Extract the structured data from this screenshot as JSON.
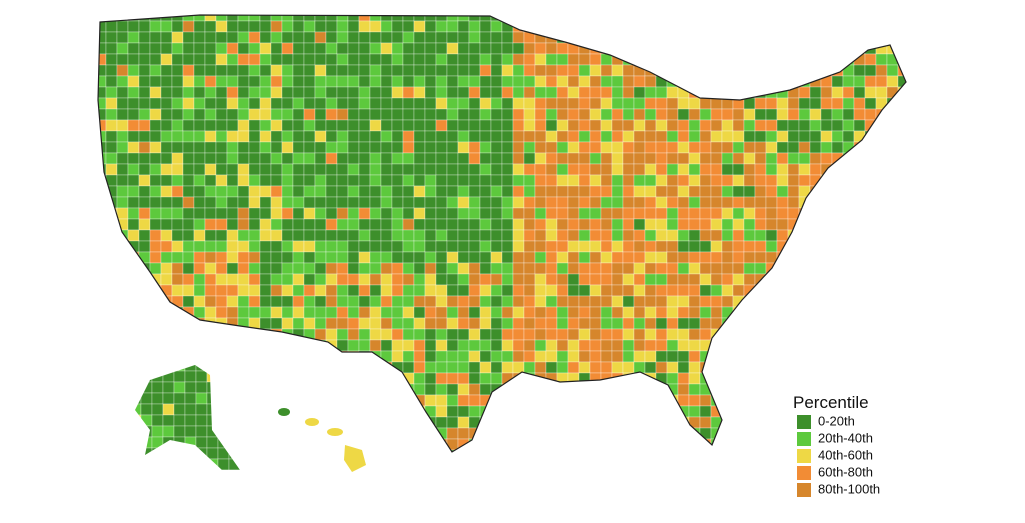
{
  "legend": {
    "title": "Percentile",
    "items": [
      {
        "label": "0-20th",
        "color": "#3d8f2b"
      },
      {
        "label": "20th-40th",
        "color": "#5dc93d"
      },
      {
        "label": "40th-60th",
        "color": "#eed845"
      },
      {
        "label": "60th-80th",
        "color": "#f28c35"
      },
      {
        "label": "80th-100th",
        "color": "#d6862c"
      }
    ]
  }
}
